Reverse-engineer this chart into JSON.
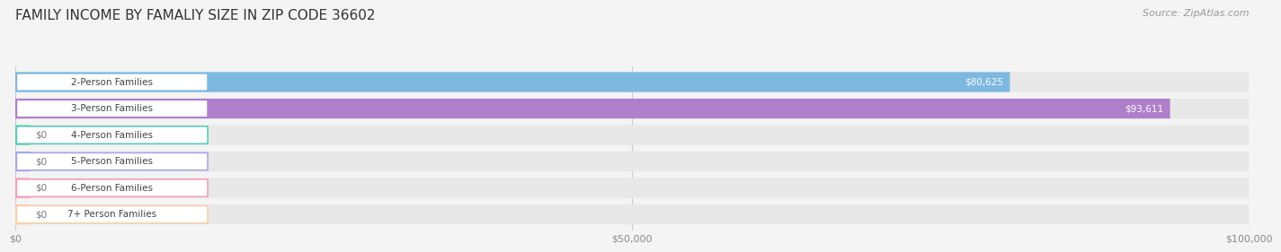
{
  "title": "FAMILY INCOME BY FAMALIY SIZE IN ZIP CODE 36602",
  "source": "Source: ZipAtlas.com",
  "categories": [
    "2-Person Families",
    "3-Person Families",
    "4-Person Families",
    "5-Person Families",
    "6-Person Families",
    "7+ Person Families"
  ],
  "values": [
    80625,
    93611,
    0,
    0,
    0,
    0
  ],
  "bar_colors": [
    "#7db8e0",
    "#b07fcc",
    "#5ecbb8",
    "#a8a8e8",
    "#f4a0b8",
    "#f8d0a8"
  ],
  "xlim": [
    0,
    100000
  ],
  "xticks": [
    0,
    50000,
    100000
  ],
  "xtick_labels": [
    "$0",
    "$50,000",
    "$100,000"
  ],
  "background_color": "#f4f4f4",
  "bar_bg_color": "#e8e8e8",
  "title_fontsize": 11,
  "source_fontsize": 8,
  "label_fontsize": 7.5,
  "value_fontsize": 7.5,
  "tick_fontsize": 8
}
